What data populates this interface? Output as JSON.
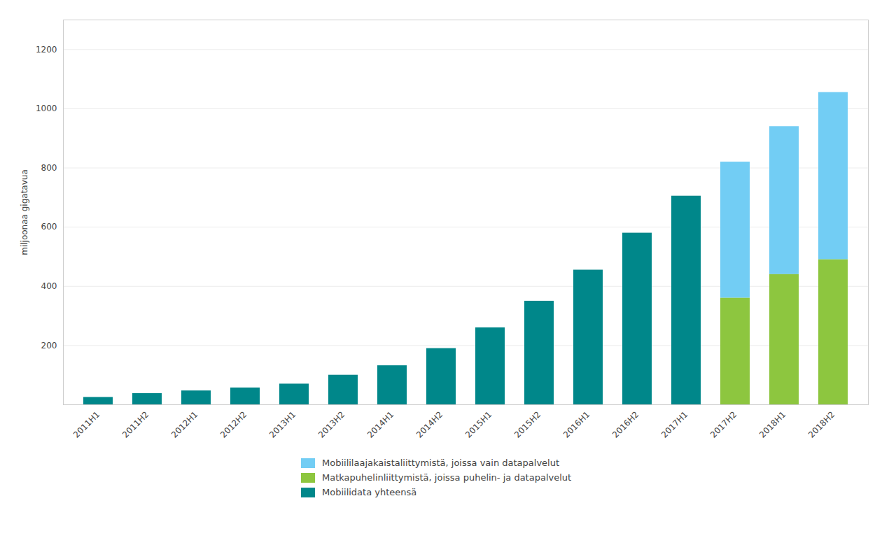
{
  "chart_data": {
    "type": "bar",
    "stacked": true,
    "ylabel": "miljoonaa gigatavua",
    "categories": [
      "2011H1",
      "2011H2",
      "2012H1",
      "2012H2",
      "2013H1",
      "2013H2",
      "2014H1",
      "2014H2",
      "2015H1",
      "2015H2",
      "2016H1",
      "2016H2",
      "2017H1",
      "2017H2",
      "2018H1",
      "2018H2"
    ],
    "series": [
      {
        "name": "Mobiililaajakaistaliittymistä, joissa vain datapalvelut",
        "color": "#72CDF4",
        "values": [
          null,
          null,
          null,
          null,
          null,
          null,
          null,
          null,
          null,
          null,
          null,
          null,
          null,
          460,
          500,
          565
        ]
      },
      {
        "name": "Matkapuhelinliittymistä, joissa puhelin- ja datapalvelut",
        "color": "#8DC63F",
        "values": [
          null,
          null,
          null,
          null,
          null,
          null,
          null,
          null,
          null,
          null,
          null,
          null,
          null,
          360,
          440,
          490
        ]
      },
      {
        "name": "Mobiilidata yhteensä",
        "color": "#00878A",
        "values": [
          25,
          38,
          47,
          57,
          70,
          100,
          132,
          190,
          260,
          350,
          455,
          580,
          705,
          null,
          null,
          null
        ]
      }
    ],
    "ylim": [
      0,
      1300
    ],
    "yticks": [
      200,
      400,
      600,
      800,
      1000,
      1200
    ],
    "grid": true,
    "legend": "bottom"
  }
}
